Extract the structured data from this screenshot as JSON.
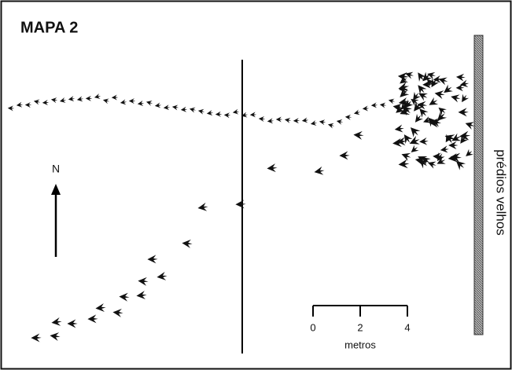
{
  "header": {
    "title": "MAPA 2"
  },
  "compass": {
    "label": "N"
  },
  "building": {
    "label": "prédios velhos"
  },
  "scale": {
    "ticks": [
      0,
      2,
      4
    ],
    "unit": "metros"
  }
}
